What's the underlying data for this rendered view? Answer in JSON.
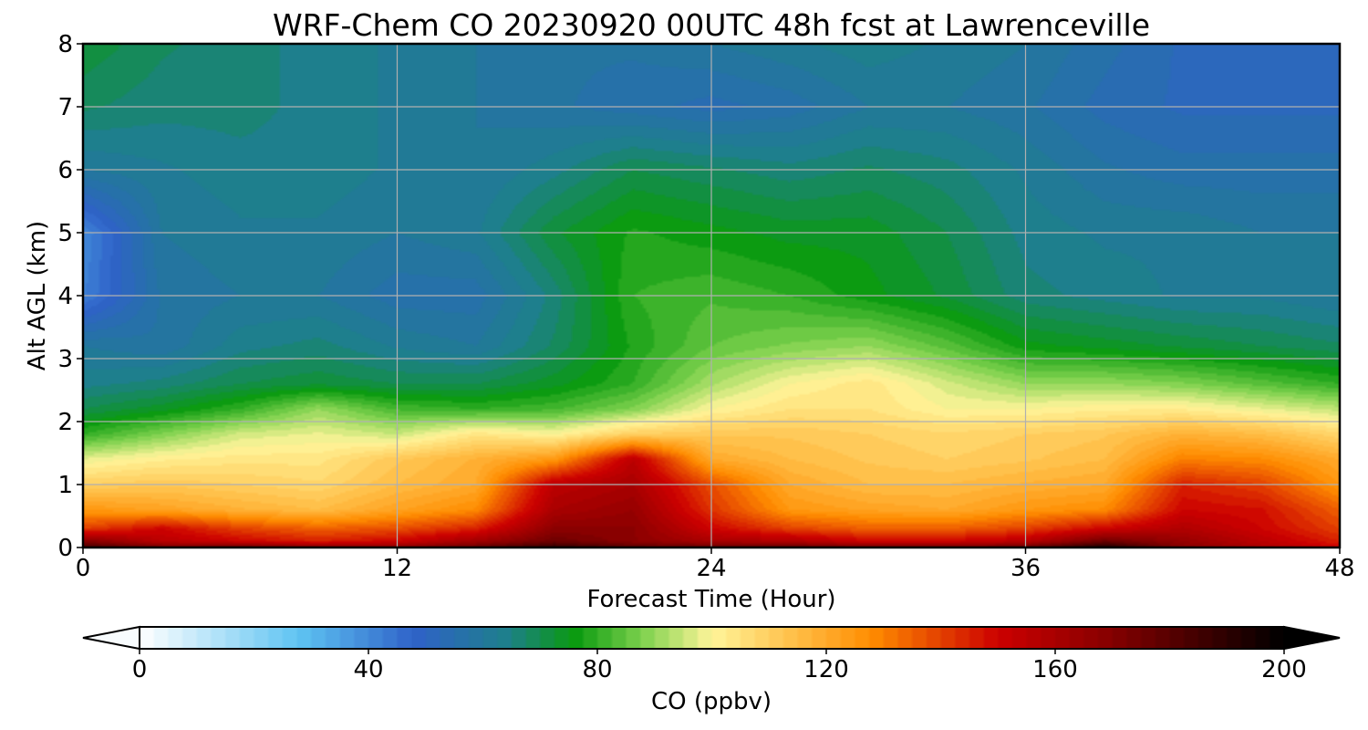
{
  "chart_data": {
    "type": "heatmap",
    "title": "WRF-Chem CO  20230920 00UTC 48h fcst at Lawrenceville",
    "xlabel": "Forecast Time (Hour)",
    "ylabel": "Alt AGL (km)",
    "xlim": [
      0,
      48
    ],
    "ylim": [
      0,
      8
    ],
    "x_ticks": [
      "0",
      "12",
      "24",
      "36",
      "48"
    ],
    "y_ticks": [
      "0",
      "1",
      "2",
      "3",
      "4",
      "5",
      "6",
      "7",
      "8"
    ],
    "grid": true,
    "colorbar": {
      "label": "CO  (ppbv)",
      "range": [
        0,
        200
      ],
      "extend": "both",
      "ticks": [
        "0",
        "40",
        "80",
        "120",
        "160",
        "200"
      ],
      "colors": [
        {
          "value": 0,
          "color": "#ffffff"
        },
        {
          "value": 28,
          "color": "#5ec3f2"
        },
        {
          "value": 48,
          "color": "#2f62c8"
        },
        {
          "value": 64,
          "color": "#1e7f8c"
        },
        {
          "value": 76,
          "color": "#0a9a10"
        },
        {
          "value": 88,
          "color": "#7fd24e"
        },
        {
          "value": 100,
          "color": "#fff59a"
        },
        {
          "value": 114,
          "color": "#ffc04a"
        },
        {
          "value": 128,
          "color": "#ff8c00"
        },
        {
          "value": 150,
          "color": "#cc0000"
        },
        {
          "value": 168,
          "color": "#8c0000"
        },
        {
          "value": 200,
          "color": "#000000"
        }
      ]
    },
    "hours": [
      0,
      3,
      6,
      9,
      12,
      15,
      18,
      21,
      24,
      27,
      30,
      33,
      36,
      39,
      42,
      45,
      48
    ],
    "altitudes_km": [
      0,
      0.1,
      0.3,
      0.6,
      1,
      1.4,
      1.8,
      2.2,
      2.6,
      3.2,
      4,
      5,
      6,
      7,
      8
    ],
    "values": [
      [
        185,
        175,
        178,
        172,
        170,
        178,
        190,
        180,
        178,
        180,
        175,
        175,
        178,
        195,
        170,
        160,
        150
      ],
      [
        170,
        155,
        150,
        145,
        150,
        162,
        175,
        168,
        160,
        158,
        150,
        150,
        155,
        175,
        165,
        155,
        145
      ],
      [
        140,
        150,
        140,
        135,
        138,
        145,
        168,
        168,
        150,
        140,
        135,
        135,
        140,
        150,
        158,
        150,
        140
      ],
      [
        125,
        122,
        118,
        115,
        122,
        128,
        160,
        165,
        142,
        125,
        122,
        120,
        125,
        128,
        150,
        148,
        135
      ],
      [
        110,
        112,
        110,
        108,
        115,
        120,
        155,
        160,
        138,
        120,
        115,
        115,
        118,
        120,
        145,
        140,
        125
      ],
      [
        98,
        102,
        104,
        104,
        112,
        118,
        125,
        155,
        120,
        115,
        112,
        110,
        112,
        115,
        130,
        128,
        120
      ],
      [
        80,
        88,
        96,
        98,
        95,
        104,
        100,
        110,
        112,
        112,
        110,
        108,
        110,
        112,
        118,
        115,
        108
      ],
      [
        70,
        74,
        80,
        90,
        82,
        80,
        82,
        88,
        100,
        105,
        105,
        100,
        100,
        102,
        102,
        98,
        94
      ],
      [
        64,
        66,
        70,
        72,
        70,
        70,
        74,
        80,
        92,
        100,
        104,
        96,
        90,
        90,
        88,
        84,
        80
      ],
      [
        60,
        58,
        64,
        66,
        62,
        60,
        68,
        78,
        85,
        88,
        90,
        84,
        76,
        74,
        72,
        70,
        68
      ],
      [
        42,
        58,
        60,
        60,
        56,
        56,
        66,
        80,
        82,
        80,
        76,
        72,
        66,
        64,
        62,
        62,
        60
      ],
      [
        40,
        60,
        62,
        62,
        60,
        62,
        72,
        78,
        76,
        74,
        74,
        70,
        64,
        62,
        62,
        60,
        60
      ],
      [
        60,
        62,
        64,
        64,
        62,
        60,
        64,
        70,
        68,
        66,
        68,
        66,
        62,
        58,
        56,
        56,
        56
      ],
      [
        68,
        66,
        66,
        64,
        62,
        60,
        58,
        56,
        54,
        56,
        60,
        60,
        58,
        54,
        52,
        52,
        52
      ],
      [
        72,
        68,
        66,
        64,
        62,
        60,
        58,
        58,
        60,
        62,
        64,
        62,
        60,
        56,
        52,
        50,
        50
      ]
    ]
  }
}
